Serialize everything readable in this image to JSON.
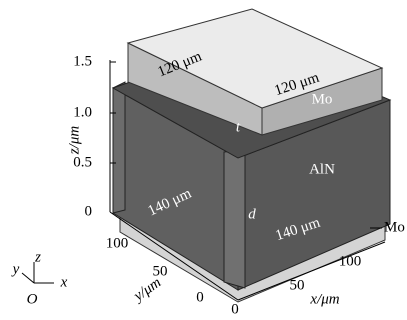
{
  "z_axis": {
    "label": "z/μm",
    "ticks": [
      "1.5",
      "1.0",
      "0.5",
      "0"
    ]
  },
  "y_axis": {
    "label": "y/μm",
    "ticks": [
      "100",
      "50",
      "0"
    ]
  },
  "x_axis": {
    "label": "x/μm",
    "ticks": [
      "0",
      "50",
      "100"
    ]
  },
  "dimensions": {
    "top_left": "120 μm",
    "top_right": "120 μm",
    "bottom_left": "140 μm",
    "bottom_right": "140 μm",
    "t": "t",
    "d": "d"
  },
  "materials": {
    "top": "Mo",
    "middle": "AlN",
    "bottom": "Mo"
  },
  "triad": {
    "y": "y",
    "z": "z",
    "x": "x",
    "origin": "O"
  }
}
